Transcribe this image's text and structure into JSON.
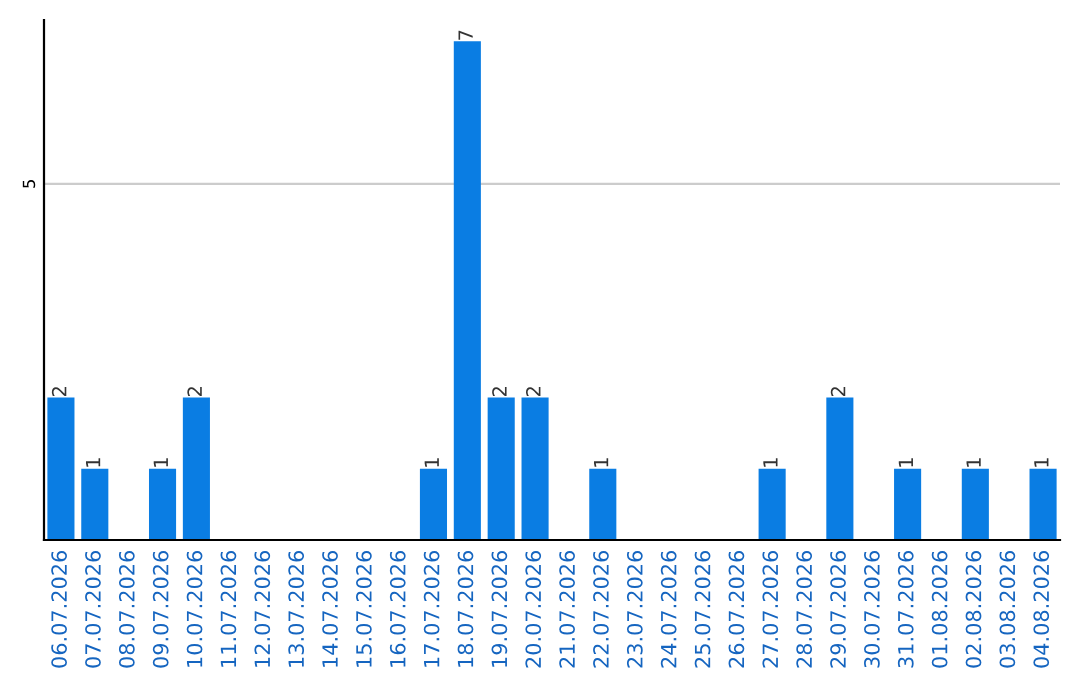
{
  "chart_data": {
    "type": "bar",
    "categories": [
      "06.07.2026",
      "07.07.2026",
      "08.07.2026",
      "09.07.2026",
      "10.07.2026",
      "11.07.2026",
      "12.07.2026",
      "13.07.2026",
      "14.07.2026",
      "15.07.2026",
      "16.07.2026",
      "17.07.2026",
      "18.07.2026",
      "19.07.2026",
      "20.07.2026",
      "21.07.2026",
      "22.07.2026",
      "23.07.2026",
      "24.07.2026",
      "25.07.2026",
      "26.07.2026",
      "27.07.2026",
      "28.07.2026",
      "29.07.2026",
      "30.07.2026",
      "31.07.2026",
      "01.08.2026",
      "02.08.2026",
      "03.08.2026",
      "04.08.2026"
    ],
    "values": [
      2,
      1,
      0,
      1,
      2,
      0,
      0,
      0,
      0,
      0,
      0,
      1,
      7,
      2,
      2,
      0,
      1,
      0,
      0,
      0,
      0,
      1,
      0,
      2,
      0,
      1,
      0,
      1,
      0,
      1
    ],
    "value_labels": [
      "2",
      "1",
      null,
      "1",
      "2",
      null,
      null,
      null,
      null,
      null,
      null,
      "1",
      "7",
      "2",
      "2",
      null,
      "1",
      null,
      null,
      null,
      null,
      "1",
      null,
      "2",
      null,
      "1",
      null,
      "1",
      null,
      "1"
    ],
    "color": "#0a7de3",
    "ylim": [
      0,
      7.3
    ],
    "yticks": [
      5
    ],
    "grid": "y"
  }
}
